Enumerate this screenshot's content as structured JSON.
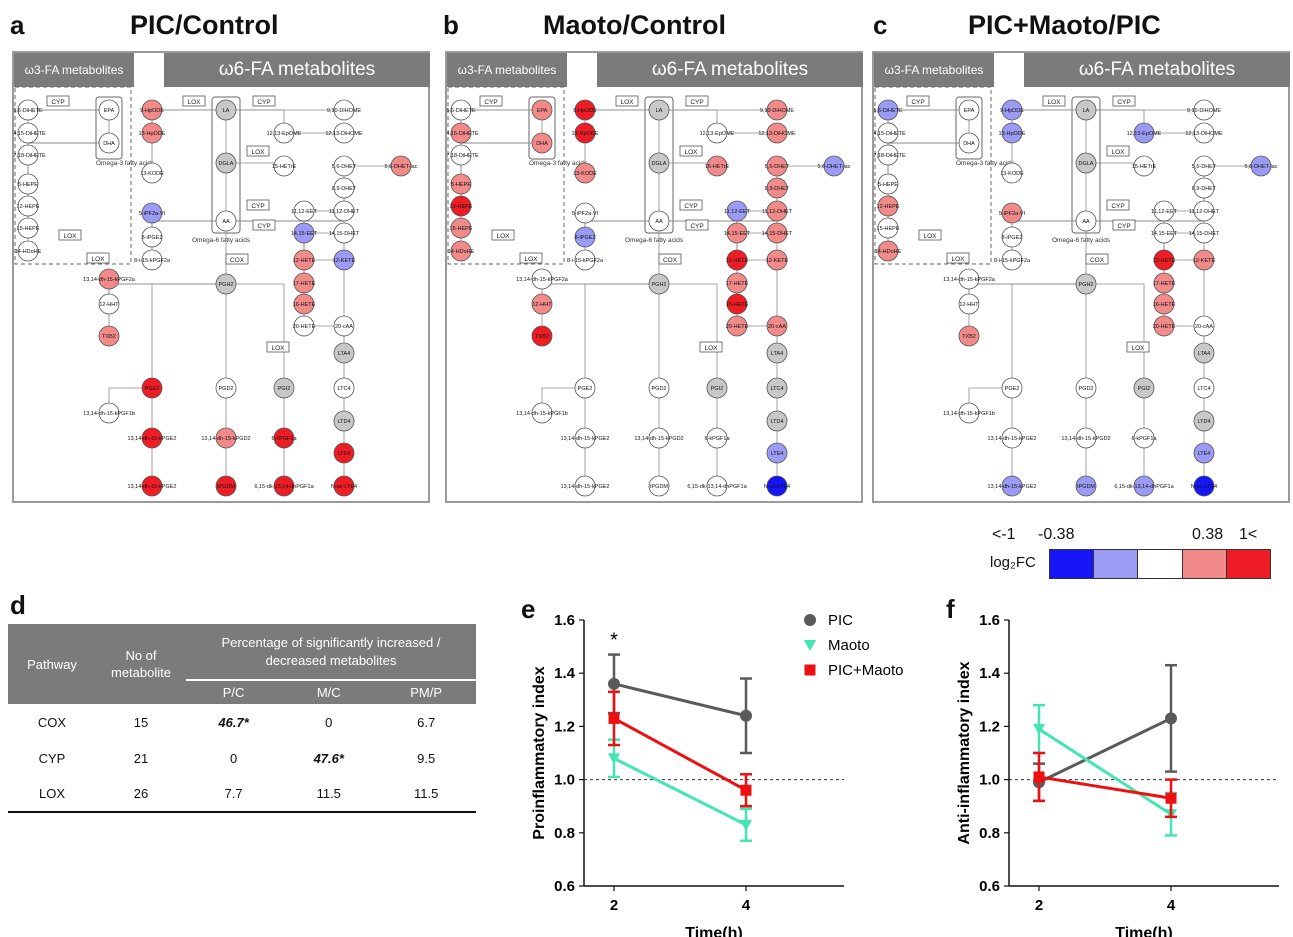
{
  "panels": [
    {
      "letter": "a",
      "title": "PIC/Control"
    },
    {
      "letter": "b",
      "title": "Maoto/Control"
    },
    {
      "letter": "c",
      "title": "PIC+Maoto/PIC"
    }
  ],
  "pathway_headers": {
    "w3": "ω3-FA metabolites",
    "w6": "ω6-FA metabolites"
  },
  "enzymes": {
    "cyp": "CYP",
    "lox": "LOX",
    "cox": "COX"
  },
  "group_labels": {
    "omega3": "Omega-3 fatty acids",
    "omega6": "Omega-6 fatty acids"
  },
  "metabolites": {
    "n56diHETE": "5,6-DiHETE",
    "n1415diHETE": "14,15-DiHETE",
    "n1718diHETE": "17,18-DiHETE",
    "epa": "EPA",
    "dha": "DHA",
    "n5hepe": "5-HEPE",
    "n12hepe": "12-HEPE",
    "n15hepe": "15-HEPE",
    "n14hdohe": "14-HDoHE",
    "n9hpode": "9-HpODE",
    "n13hpode": "13-HpODE",
    "n13kode": "13-KODE",
    "la": "LA",
    "dgla": "DGLA",
    "aa": "AA",
    "pgh2": "PGH2",
    "n910dihome": "9,10-DiHOME",
    "n1213dihome": "12,13-DiHOME",
    "n1213epome": "12,13-EpOME",
    "n15hetre": "15-HETrE",
    "n56dhet": "5,6-DHET",
    "n56dhetlac": "5,6-DHET-lac",
    "n89dhet": "8,9-DHET",
    "n1112eet": "11,12-EET",
    "n1112dhet": "11,12-DHET",
    "n1415eet": "14,15-EET",
    "n1415dhet": "14,15-DHET",
    "n5ipf2a": "5-iPF2a-VI",
    "n8ipge2": "8-iPGE2",
    "n8i15kpgf2a": "8-i-15-kPGF2a",
    "n12hete": "12-HETE",
    "n12kete": "12-KETE",
    "n17hete": "17-HETE",
    "n16hete": "16-HETE",
    "n20hete": "20-HETE",
    "n20caa": "20-cAA",
    "n1314dh15kpgf2a": "13,14-dh-15-kPGF2a",
    "n12hht": "12-HHT",
    "txb2": "TXB2",
    "lta4": "LTA4",
    "ltc4": "LTC4",
    "ltd4": "LTD4",
    "lte4": "LTE4",
    "pge2": "PGE2",
    "pgd2": "PGD2",
    "pgi2": "PGI2",
    "n1314dh15kpgf1b": "13,14-dh-15-kPGF1b",
    "n1314dh15kpge2": "13,14-dh-15-kPGE2",
    "n1314dh15kpgd2": "13,14-dh-15-kPGD2",
    "n6kpgf1a": "6-kPGF1a",
    "n1314dh15kpge2b": "13,14-dh-15-kPGE2",
    "tpgdm": "tPGDM",
    "n615dk1314dhpgf1a": "6,15-dk-13,14-dhPGF1a",
    "nacLTE4": "N-ac-LTE4"
  },
  "colors": {
    "dark_blue": "#1515f5",
    "light_blue": "#9b9bf5",
    "white": "#ffffff",
    "light_red": "#f28a8a",
    "red": "#ee1c25",
    "grey": "#c8c8c8",
    "gpc": "#5a5a5a",
    "gmaoto": "#44e6b0",
    "gmix": "#ee1010"
  },
  "legend": {
    "label": "log₂FC",
    "ticks": [
      "<-1",
      "-0.38",
      "0.38",
      "1<"
    ]
  },
  "table": {
    "letter": "d",
    "headers": {
      "pathway": "Pathway",
      "no": "No of metabolite",
      "pct": "Percentage of significantly increased / decreased metabolites",
      "pc": "P/C",
      "mc": "M/C",
      "pmp": "PM/P"
    },
    "rows": [
      {
        "pathway": "COX",
        "no": "15",
        "pc": "46.7*",
        "mc": "0",
        "pmp": "6.7"
      },
      {
        "pathway": "CYP",
        "no": "21",
        "pc": "0",
        "mc": "47.6*",
        "pmp": "9.5"
      },
      {
        "pathway": "LOX",
        "no": "26",
        "pc": "7.7",
        "mc": "11.5",
        "pmp": "11.5"
      }
    ]
  },
  "chart_data": [
    {
      "panel": "e",
      "type": "line",
      "xlabel": "Time(h)",
      "ylabel": "Proinflammatory index",
      "x": [
        2,
        4
      ],
      "ylim": [
        0.6,
        1.6
      ],
      "yticks": [
        "0.6",
        "0.8",
        "1.0",
        "1.2",
        "1.4",
        "1.6"
      ],
      "xticks": [
        "2",
        "4"
      ],
      "reference_line": 1.0,
      "annotation": "*",
      "series": [
        {
          "name": "PIC",
          "values": [
            1.36,
            1.24
          ],
          "err": [
            0.11,
            0.14
          ]
        },
        {
          "name": "Maoto",
          "values": [
            1.08,
            0.83
          ],
          "err": [
            0.07,
            0.06
          ]
        },
        {
          "name": "PIC+Maoto",
          "values": [
            1.23,
            0.96
          ],
          "err": [
            0.1,
            0.06
          ]
        }
      ],
      "legend_placement": "top-right"
    },
    {
      "panel": "f",
      "type": "line",
      "xlabel": "Time(h)",
      "ylabel": "Anti-inflammatory index",
      "x": [
        2,
        4
      ],
      "ylim": [
        0.6,
        1.6
      ],
      "yticks": [
        "0.6",
        "0.8",
        "1.0",
        "1.2",
        "1.4",
        "1.6"
      ],
      "xticks": [
        "2",
        "4"
      ],
      "reference_line": 1.0,
      "series": [
        {
          "name": "PIC",
          "values": [
            0.99,
            1.23
          ],
          "err": [
            0.07,
            0.2
          ]
        },
        {
          "name": "Maoto",
          "values": [
            1.19,
            0.87
          ],
          "err": [
            0.09,
            0.08
          ]
        },
        {
          "name": "PIC+Maoto",
          "values": [
            1.01,
            0.93
          ],
          "err": [
            0.09,
            0.07
          ]
        }
      ]
    }
  ],
  "node_colors": {
    "a": {
      "n56diHETE": "white",
      "n1415diHETE": "white",
      "n1718diHETE": "white",
      "epa": "white",
      "dha": "white",
      "n5hepe": "white",
      "n12hepe": "white",
      "n15hepe": "white",
      "n14hdohe": "white",
      "n9hpode": "light_red",
      "n13hpode": "light_red",
      "n13kode": "white",
      "la": "grey",
      "dgla": "grey",
      "aa": "white",
      "pgh2": "grey",
      "n910dihome": "white",
      "n1213dihome": "white",
      "n1213epome": "white",
      "n15hetre": "white",
      "n56dhet": "white",
      "n56dhetlac": "light_red",
      "n89dhet": "white",
      "n1112eet": "white",
      "n1112dhet": "white",
      "n1415eet": "light_blue",
      "n1415dhet": "white",
      "n5ipf2a": "light_blue",
      "n8ipge2": "white",
      "n8i15kpgf2a": "white",
      "n12hete": "light_red",
      "n12kete": "light_blue",
      "n17hete": "light_red",
      "n16hete": "light_red",
      "n20hete": "white",
      "n20caa": "white",
      "n1314dh15kpgf2a": "light_red",
      "n12hht": "white",
      "txb2": "light_red",
      "lta4": "grey",
      "ltc4": "white",
      "ltd4": "grey",
      "lte4": "red",
      "pge2": "red",
      "pgd2": "white",
      "pgi2": "grey",
      "n1314dh15kpge2": "red",
      "n1314dh15kpgd2": "light_red",
      "n6kpgf1a": "red",
      "n1314dh15kpge2b": "red",
      "tpgdm": "red",
      "n615dk1314dhpgf1a": "red",
      "nacLTE4": "red"
    },
    "b": {
      "n56diHETE": "white",
      "n1415diHETE": "light_red",
      "n1718diHETE": "white",
      "epa": "light_red",
      "dha": "light_red",
      "n5hepe": "light_red",
      "n12hepe": "red",
      "n15hepe": "light_red",
      "n14hdohe": "light_red",
      "n9hpode": "red",
      "n13hpode": "red",
      "n13kode": "light_red",
      "la": "grey",
      "dgla": "grey",
      "aa": "white",
      "pgh2": "grey",
      "n910dihome": "light_red",
      "n1213dihome": "light_red",
      "n1213epome": "white",
      "n15hetre": "light_red",
      "n56dhet": "light_red",
      "n56dhetlac": "light_blue",
      "n89dhet": "light_red",
      "n1112eet": "light_blue",
      "n1112dhet": "light_red",
      "n1415eet": "light_red",
      "n1415dhet": "light_red",
      "n5ipf2a": "white",
      "n8ipge2": "light_blue",
      "n8i15kpgf2a": "white",
      "n12hete": "red",
      "n12kete": "light_red",
      "n17hete": "light_red",
      "n16hete": "red",
      "n20hete": "light_red",
      "n20caa": "light_red",
      "n1314dh15kpgf2a": "white",
      "n12hht": "light_red",
      "txb2": "red",
      "lta4": "grey",
      "ltc4": "grey",
      "ltd4": "grey",
      "lte4": "light_blue",
      "pge2": "white",
      "pgd2": "white",
      "pgi2": "grey",
      "n1314dh15kpge2": "white",
      "n1314dh15kpgd2": "white",
      "n6kpgf1a": "white",
      "n1314dh15kpge2b": "white",
      "tpgdm": "white",
      "n615dk1314dhpgf1a": "white",
      "nacLTE4": "dark_blue"
    },
    "c": {
      "n56diHETE": "light_blue",
      "n1415diHETE": "white",
      "n1718diHETE": "white",
      "epa": "white",
      "dha": "white",
      "n5hepe": "white",
      "n12hepe": "light_red",
      "n15hepe": "white",
      "n14hdohe": "light_red",
      "n9hpode": "light_blue",
      "n13hpode": "light_blue",
      "n13kode": "white",
      "la": "grey",
      "dgla": "grey",
      "aa": "white",
      "pgh2": "grey",
      "n910dihome": "white",
      "n1213dihome": "white",
      "n1213epome": "light_blue",
      "n15hetre": "white",
      "n56dhet": "white",
      "n56dhetlac": "light_blue",
      "n89dhet": "white",
      "n1112eet": "white",
      "n1112dhet": "white",
      "n1415eet": "white",
      "n1415dhet": "white",
      "n5ipf2a": "light_red",
      "n8ipge2": "white",
      "n8i15kpgf2a": "white",
      "n12hete": "red",
      "n12kete": "light_red",
      "n17hete": "light_red",
      "n16hete": "light_red",
      "n20hete": "light_red",
      "n20caa": "white",
      "n1314dh15kpgf2a": "white",
      "n12hht": "white",
      "txb2": "light_red",
      "lta4": "grey",
      "ltc4": "white",
      "ltd4": "grey",
      "lte4": "light_blue",
      "pge2": "white",
      "pgd2": "white",
      "pgi2": "grey",
      "n1314dh15kpge2": "white",
      "n1314dh15kpgd2": "white",
      "n6kpgf1a": "white",
      "n1314dh15kpge2b": "light_blue",
      "tpgdm": "light_blue",
      "n615dk1314dhpgf1a": "light_blue",
      "nacLTE4": "dark_blue"
    }
  }
}
